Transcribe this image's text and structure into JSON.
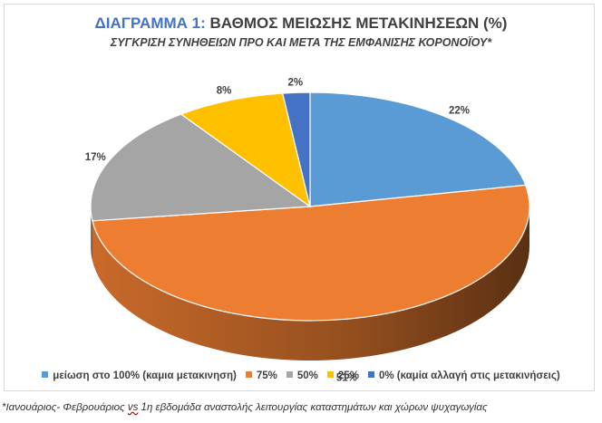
{
  "chart_data": {
    "type": "pie",
    "title_prefix": "ΔΙΑΓΡΑΜΜΑ 1:",
    "title": "ΒΑΘΜΟΣ ΜΕΙΩΣΗΣ ΜΕΤΑΚΙΝΗΣΕΩΝ (%)",
    "subtitle": "ΣΥΓΚΡΙΣΗ ΣΥΝΗΘΕΙΩΝ ΠΡΟ ΚΑΙ ΜΕΤΑ ΤΗΣ ΕΜΦΑΝΙΣΗΣ ΚΟΡΟΝΟΪΟΥ*",
    "categories": [
      "μείωση στο 100% (καμια μετακινηση)",
      "75%",
      "50%",
      "25%",
      "0%  (καμία αλλαγή στις μετακινήσεις)"
    ],
    "values": [
      22,
      51,
      17,
      8,
      2
    ],
    "value_labels": [
      "22%",
      "51%",
      "17%",
      "8%",
      "2%"
    ],
    "colors": [
      "#5b9bd5",
      "#ed7d31",
      "#a5a5a5",
      "#ffc000",
      "#4472c4"
    ],
    "legend_position": "bottom",
    "style": "3d-pie"
  },
  "footnote": {
    "before": "*Ιανουάριος- Φεβρουάριος ",
    "vs": "vs",
    "after": " 1η εβδομάδα αναστολής λειτουργίας καταστημάτων και χώρων ψυχαγωγίας"
  }
}
